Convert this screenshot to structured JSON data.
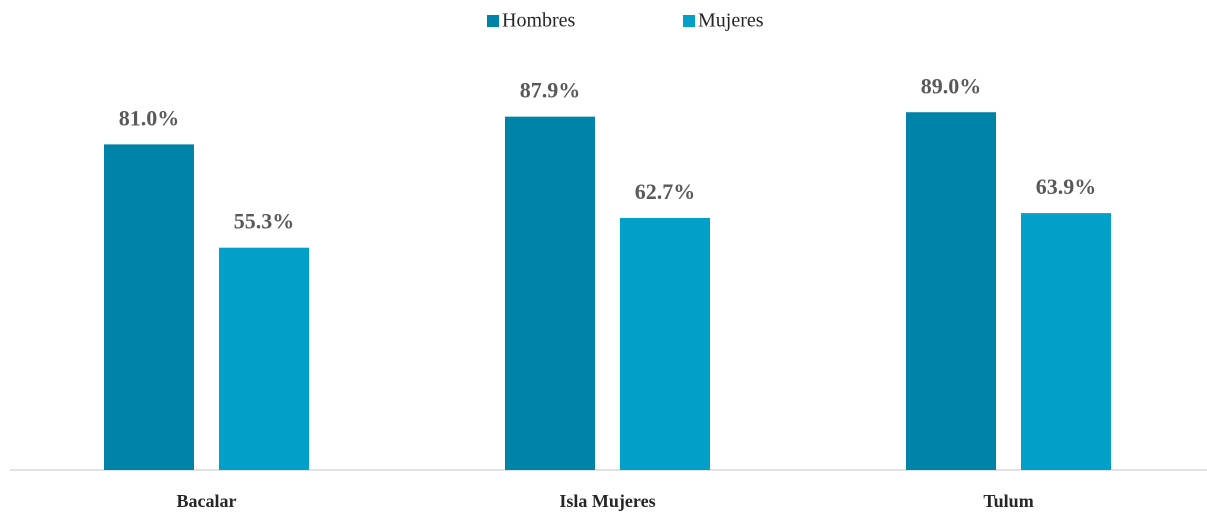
{
  "chart_data": {
    "type": "bar",
    "categories": [
      "Bacalar",
      "Isla Mujeres",
      "Tulum"
    ],
    "series": [
      {
        "name": "Hombres",
        "color": "#0083a8",
        "values": [
          81.0,
          87.9,
          89.0
        ],
        "value_labels": [
          "81.0%",
          "87.9%",
          "89.0%"
        ]
      },
      {
        "name": "Mujeres",
        "color": "#00a0c8",
        "values": [
          55.3,
          62.7,
          63.9
        ],
        "value_labels": [
          "55.3%",
          "62.7%",
          "63.9%"
        ]
      }
    ],
    "legend": "top"
  }
}
